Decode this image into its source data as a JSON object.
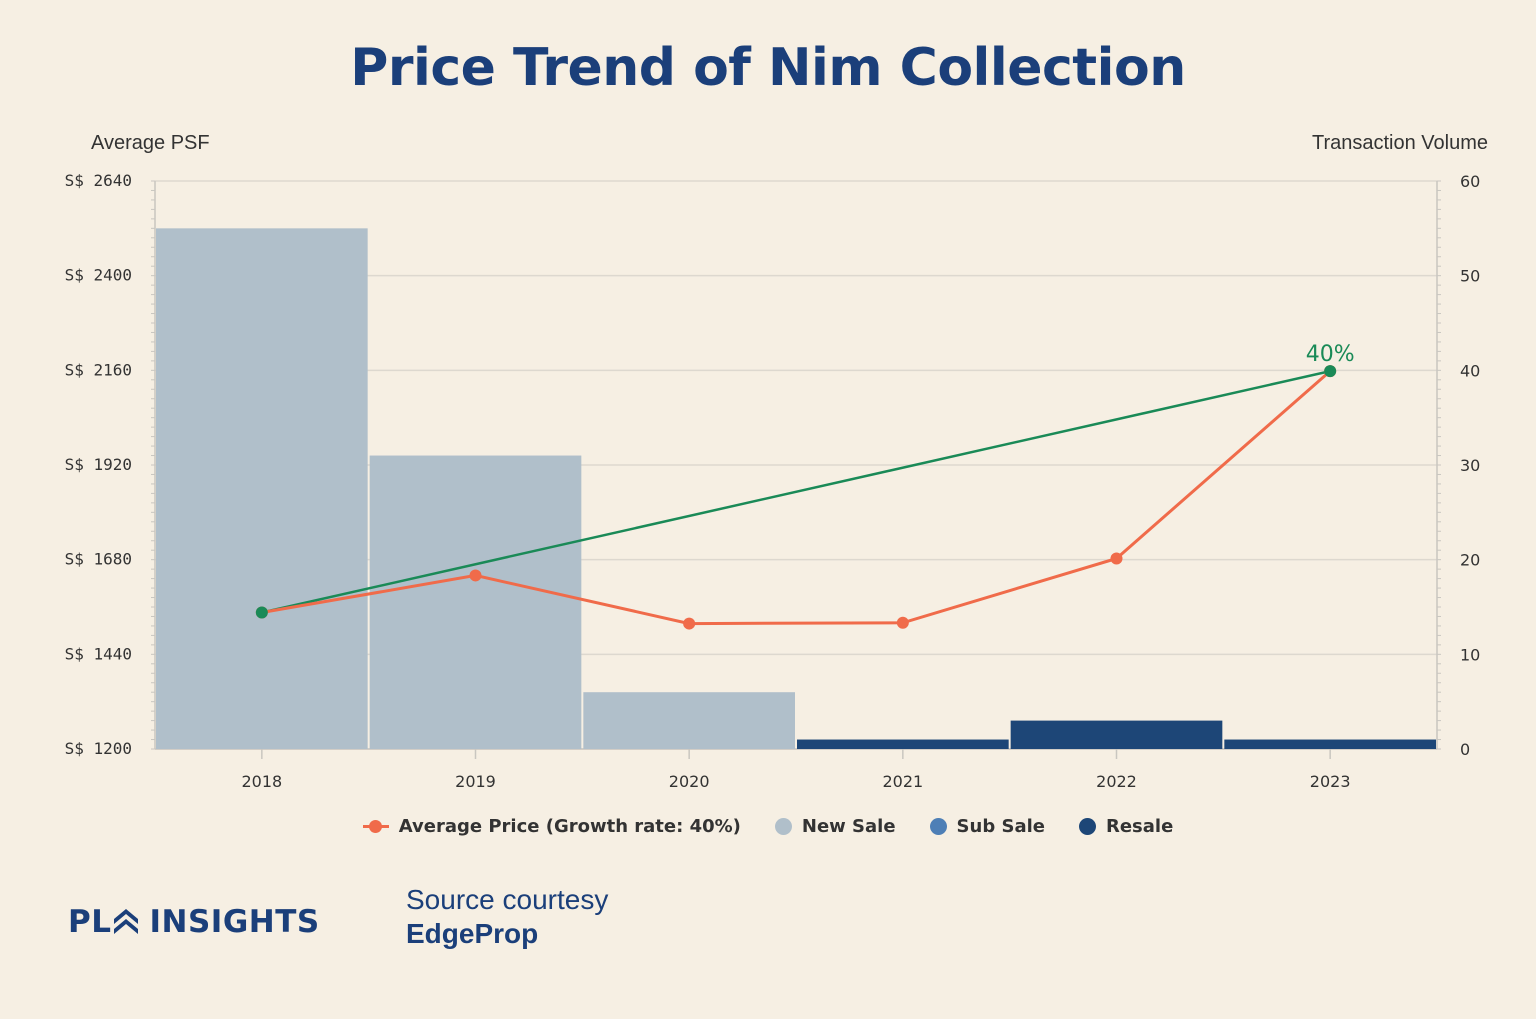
{
  "title": "Price Trend of Nim Collection",
  "chart_data": {
    "type": "bar+line",
    "categories": [
      "2018",
      "2019",
      "2020",
      "2021",
      "2022",
      "2023"
    ],
    "left_axis": {
      "label": "Average PSF",
      "prefix": "S$ ",
      "ticks": [
        1200,
        1440,
        1680,
        1920,
        2160,
        2400,
        2640
      ],
      "range": [
        1200,
        2640
      ]
    },
    "right_axis": {
      "label": "Transaction Volume",
      "ticks": [
        0,
        10,
        20,
        30,
        40,
        50,
        60
      ],
      "range": [
        0,
        60
      ]
    },
    "bar_series": [
      {
        "name": "New Sale",
        "color": "#b0bfca",
        "values": [
          55,
          31,
          6,
          0,
          0,
          0
        ]
      },
      {
        "name": "Sub Sale",
        "color": "#4e7fb6",
        "values": [
          0,
          0,
          0,
          0,
          0,
          0
        ]
      },
      {
        "name": "Resale",
        "color": "#1d4677",
        "values": [
          0,
          0,
          0,
          1,
          3,
          1
        ]
      }
    ],
    "line_series": {
      "name": "Average Price (Growth rate: 40%)",
      "color": "#f06b4a",
      "values": [
        1546,
        1640,
        1518,
        1520,
        1683,
        2158
      ]
    },
    "trend_line": {
      "color": "#1a8a57",
      "label": "40%",
      "from": {
        "x": "2018",
        "y": 1546
      },
      "to": {
        "x": "2023",
        "y": 2158
      }
    },
    "legend_position": "bottom",
    "grid": true
  },
  "legend": [
    {
      "label": "Average Price (Growth rate: 40%)",
      "type": "line",
      "color": "#f06b4a"
    },
    {
      "label": "New Sale",
      "type": "dot",
      "color": "#b0bfca"
    },
    {
      "label": "Sub Sale",
      "type": "dot",
      "color": "#4e7fb6"
    },
    {
      "label": "Resale",
      "type": "dot",
      "color": "#1d4677"
    }
  ],
  "footer": {
    "brand": "PL INSIGHTS",
    "brand_left": "PL",
    "brand_right": "INSIGHTS",
    "source_line1": "Source courtesy",
    "source_line2": "EdgeProp"
  }
}
